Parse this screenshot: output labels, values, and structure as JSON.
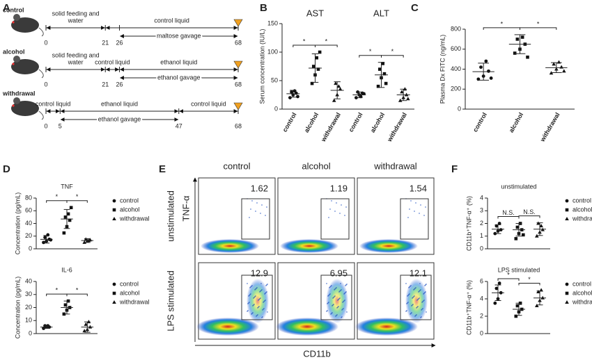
{
  "panel_labels": [
    "A",
    "B",
    "C",
    "D",
    "E",
    "F"
  ],
  "timelines": [
    {
      "name": "control",
      "days": [
        0,
        21,
        26,
        68
      ],
      "above": [
        [
          "solid feeding and",
          "water"
        ],
        [
          "control liquid"
        ]
      ],
      "below": [
        "maltose gavage"
      ]
    },
    {
      "name": "alcohol",
      "days": [
        0,
        21,
        26,
        68
      ],
      "above": [
        [
          "solid feeding and",
          "water"
        ],
        [
          "control liquid"
        ],
        [
          "ethanol liquid"
        ]
      ],
      "below": [
        "ethanol gavage"
      ]
    },
    {
      "name": "withdrawal",
      "days": [
        0,
        5,
        47,
        68
      ],
      "above": [
        [
          "control liquid"
        ],
        [
          "ethanol liquid"
        ],
        [
          "control liquid"
        ]
      ],
      "below": [
        "ethanol gavage"
      ]
    }
  ],
  "chart_data": [
    {
      "type": "dot",
      "group_titles": [
        "AST",
        "ALT"
      ],
      "ylabel": "Serum concentration (IU/L)",
      "categories": [
        "control",
        "alcohol",
        "withdrawal",
        "control",
        "alcohol",
        "withdrawal"
      ],
      "points": [
        [
          20,
          25,
          28,
          30,
          32,
          22
        ],
        [
          45,
          60,
          70,
          75,
          90,
          100
        ],
        [
          15,
          25,
          35,
          45,
          40
        ],
        [
          20,
          25,
          28,
          30,
          22,
          27
        ],
        [
          40,
          55,
          62,
          70,
          80,
          45
        ],
        [
          15,
          20,
          25,
          30,
          35,
          18
        ]
      ],
      "means": [
        27,
        72,
        33,
        25,
        60,
        25
      ],
      "sds": [
        6,
        25,
        15,
        5,
        22,
        10
      ],
      "ylim": [
        0,
        150
      ],
      "yticks": [
        0,
        50,
        100,
        150
      ],
      "brackets": [
        "*",
        "*",
        "*",
        "*"
      ]
    },
    {
      "type": "dot",
      "ylabel": "Plasma Dx FITC (ng/mL)",
      "categories": [
        "control",
        "alcohol",
        "withdrawal"
      ],
      "points": [
        [
          300,
          330,
          380,
          420,
          480,
          310
        ],
        [
          560,
          600,
          650,
          700,
          720,
          520
        ],
        [
          360,
          400,
          420,
          450,
          470,
          380
        ]
      ],
      "means": [
        375,
        650,
        415
      ],
      "sds": [
        85,
        95,
        50
      ],
      "ylim": [
        0,
        800
      ],
      "yticks": [
        0,
        200,
        400,
        600,
        800
      ],
      "brackets": [
        "*",
        "*"
      ]
    },
    {
      "type": "dot",
      "title": "TNF",
      "ylabel": "Concentration (pg/mL)",
      "legend": true,
      "categories": [
        "control",
        "alcohol",
        "withdrawal"
      ],
      "points": [
        [
          10,
          12,
          15,
          18,
          22,
          14
        ],
        [
          25,
          35,
          45,
          50,
          55,
          65
        ],
        [
          10,
          12,
          14,
          15,
          13
        ]
      ],
      "means": [
        15,
        47,
        13
      ],
      "sds": [
        6,
        15,
        3
      ],
      "ylim": [
        0,
        80
      ],
      "yticks": [
        0,
        20,
        40,
        60,
        80
      ],
      "brackets": [
        "*",
        "*"
      ]
    },
    {
      "type": "dot",
      "title": "IL-6",
      "ylabel": "Concentration (pg/mL)",
      "legend": true,
      "categories": [
        "control",
        "alcohol",
        "withdrawal"
      ],
      "points": [
        [
          4,
          5,
          5,
          6,
          6
        ],
        [
          15,
          18,
          20,
          22,
          25
        ],
        [
          2,
          3,
          5,
          7,
          9
        ]
      ],
      "means": [
        5,
        20,
        5
      ],
      "sds": [
        1,
        5,
        4
      ],
      "ylim": [
        0,
        40
      ],
      "yticks": [
        0,
        10,
        20,
        30,
        40
      ],
      "brackets": [
        "*",
        "*"
      ]
    },
    {
      "type": "dot",
      "title": "unstimulated",
      "ylabel": "CD11b⁺TNF-α⁺ (%)",
      "legend": true,
      "categories": [
        "control",
        "alcohol",
        "withdrawal"
      ],
      "points": [
        [
          1.2,
          1.4,
          1.5,
          1.8,
          2.0
        ],
        [
          0.8,
          1.2,
          1.5,
          1.7,
          2.0,
          1.1
        ],
        [
          1.0,
          1.3,
          1.5,
          2.0,
          1.8
        ]
      ],
      "means": [
        1.55,
        1.5,
        1.55
      ],
      "sds": [
        0.35,
        0.5,
        0.5
      ],
      "ylim": [
        0,
        4
      ],
      "yticks": [
        0,
        1,
        2,
        3,
        4
      ],
      "brackets": [
        "N.S.",
        "N.S."
      ]
    },
    {
      "type": "dot",
      "title": "LPS stimulated",
      "ylabel": "CD11b⁺TNF-α⁺ (%)",
      "legend": true,
      "categories": [
        "control",
        "alcohol",
        "withdrawal"
      ],
      "points": [
        [
          3.5,
          4.0,
          4.7,
          5.2,
          5.8
        ],
        [
          2.0,
          2.5,
          2.8,
          3.2,
          3.5
        ],
        [
          3.2,
          3.8,
          4.1,
          4.8,
          5.0
        ]
      ],
      "means": [
        4.7,
        2.8,
        4.1
      ],
      "sds": [
        0.9,
        0.7,
        0.8
      ],
      "ylim": [
        0,
        6
      ],
      "yticks": [
        0,
        2,
        4,
        6
      ],
      "brackets": [
        "*",
        "*"
      ]
    }
  ],
  "flow": {
    "columns": [
      "control",
      "alcohol",
      "withdrawal"
    ],
    "rows": [
      "unstimulated",
      "LPS stimulated"
    ],
    "values": [
      [
        1.62,
        1.19,
        1.54
      ],
      [
        12.9,
        6.95,
        12.1
      ]
    ],
    "y_axis": "TNF-α",
    "x_axis": "CD11b"
  }
}
